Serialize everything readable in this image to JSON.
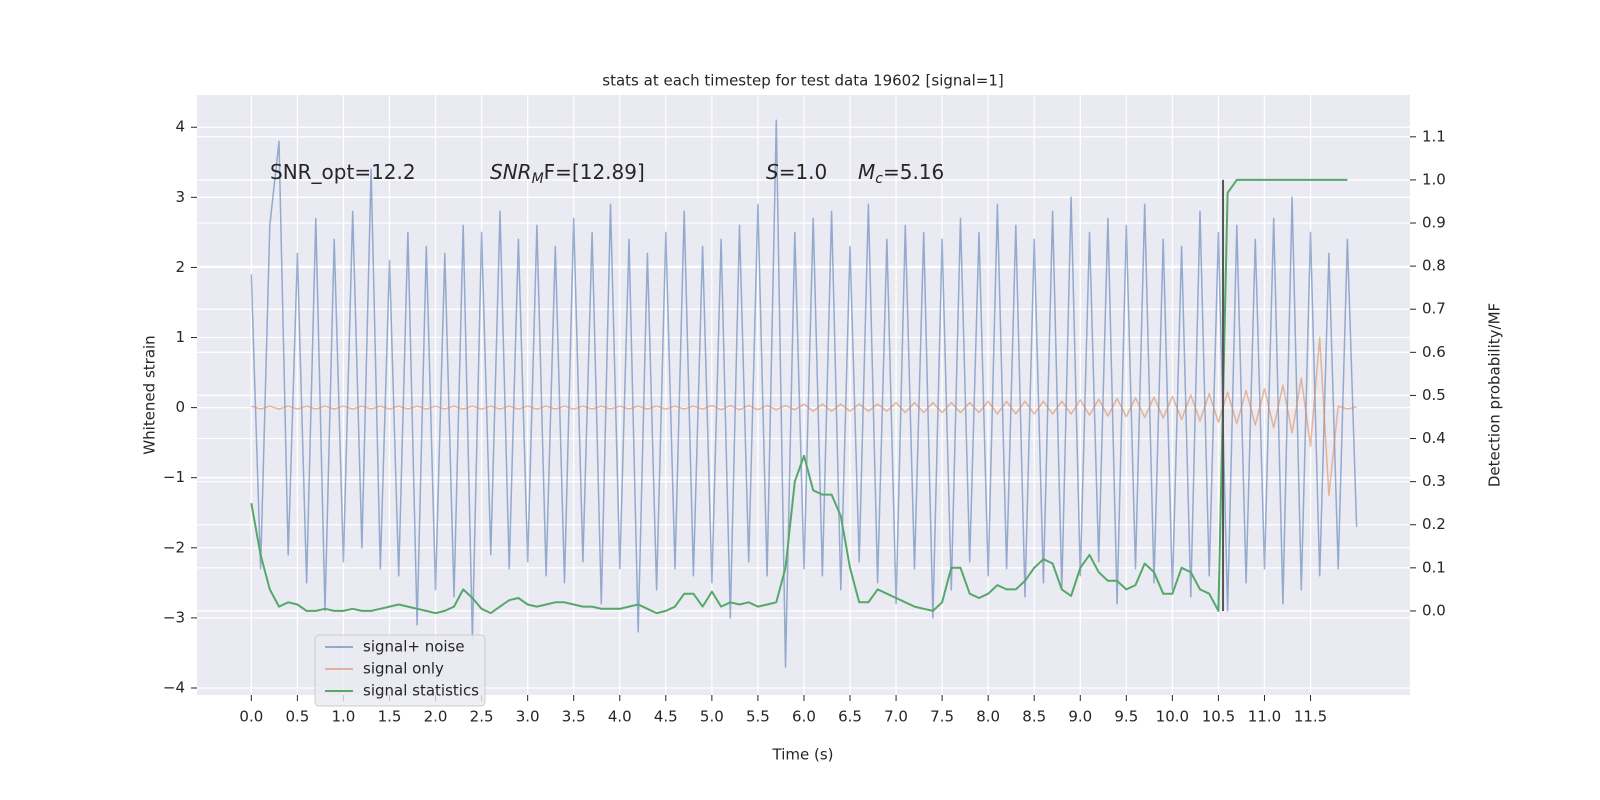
{
  "chart_data": {
    "type": "line",
    "title": "stats at each timestep for test data 19602 [signal=1]",
    "xlabel": "Time (s)",
    "ylabel": "Whitened strain",
    "y2label": "Detection probability/MF",
    "annotations": [
      {
        "text": "SNR_opt=12.2"
      },
      {
        "italic": "SNR",
        "sub": "M",
        "text": "F=[12.89]"
      },
      {
        "italic": "S",
        "text": "=1.0"
      },
      {
        "italic": "M",
        "sub": "c",
        "text": "=5.16"
      }
    ],
    "x": [
      0,
      0.1,
      0.2,
      0.3,
      0.4,
      0.5,
      0.6,
      0.7,
      0.8,
      0.9,
      1,
      1.1,
      1.2,
      1.3,
      1.4,
      1.5,
      1.6,
      1.7,
      1.8,
      1.9,
      2,
      2.1,
      2.2,
      2.3,
      2.4,
      2.5,
      2.6,
      2.7,
      2.8,
      2.9,
      3,
      3.1,
      3.2,
      3.3,
      3.4,
      3.5,
      3.6,
      3.7,
      3.8,
      3.9,
      4,
      4.1,
      4.2,
      4.3,
      4.4,
      4.5,
      4.6,
      4.7,
      4.8,
      4.9,
      5,
      5.1,
      5.2,
      5.3,
      5.4,
      5.5,
      5.6,
      5.7,
      5.8,
      5.9,
      6,
      6.1,
      6.2,
      6.3,
      6.4,
      6.5,
      6.6,
      6.7,
      6.8,
      6.9,
      7,
      7.1,
      7.2,
      7.3,
      7.4,
      7.5,
      7.6,
      7.7,
      7.8,
      7.9,
      8,
      8.1,
      8.2,
      8.3,
      8.4,
      8.5,
      8.6,
      8.7,
      8.8,
      8.9,
      9,
      9.1,
      9.2,
      9.3,
      9.4,
      9.5,
      9.6,
      9.7,
      9.8,
      9.9,
      10,
      10.1,
      10.2,
      10.3,
      10.4,
      10.5,
      10.6,
      10.7,
      10.8,
      10.9,
      11,
      11.1,
      11.2,
      11.3,
      11.4,
      11.5,
      11.6,
      11.7,
      11.8,
      11.9,
      12
    ],
    "series": [
      {
        "name": "signal+ noise",
        "color": "#4c72b0",
        "values": [
          1.9,
          -2.3,
          2.6,
          3.8,
          -2.1,
          2.2,
          -2.5,
          2.7,
          -2.9,
          2.4,
          -2.2,
          2.8,
          -2.0,
          3.4,
          -2.3,
          2.1,
          -2.4,
          2.5,
          -3.1,
          2.3,
          -2.6,
          2.2,
          -2.7,
          2.6,
          -3.3,
          2.5,
          -2.1,
          2.8,
          -2.3,
          2.4,
          -2.2,
          2.6,
          -2.4,
          2.3,
          -2.5,
          2.7,
          -2.2,
          2.5,
          -2.8,
          2.9,
          -2.3,
          2.4,
          -3.2,
          2.2,
          -2.6,
          2.5,
          -2.3,
          2.8,
          -2.4,
          2.3,
          -2.5,
          2.4,
          -3.0,
          2.6,
          -2.2,
          2.9,
          -2.4,
          4.1,
          -3.7,
          2.5,
          -2.3,
          2.7,
          -2.4,
          2.8,
          -2.6,
          2.3,
          -2.2,
          2.9,
          -2.5,
          2.4,
          -2.8,
          2.6,
          -2.3,
          2.5,
          -3.0,
          2.4,
          -2.6,
          2.7,
          -2.2,
          2.5,
          -2.4,
          2.9,
          -2.3,
          2.6,
          -2.7,
          2.4,
          -2.5,
          2.8,
          -2.6,
          3.0,
          -2.4,
          2.5,
          -2.2,
          2.7,
          -2.8,
          2.6,
          -2.3,
          2.9,
          -2.5,
          2.4,
          -2.6,
          2.3,
          -2.7,
          2.8,
          -2.4,
          2.5,
          -2.9,
          2.6,
          -2.5,
          2.4,
          -2.3,
          2.7,
          -2.8,
          3.0,
          -2.6,
          2.5,
          -2.4,
          2.2,
          -2.3,
          2.4,
          -1.7
        ]
      },
      {
        "name": "signal only",
        "color": "#dd8452",
        "values": [
          0.02,
          -0.02,
          0.02,
          -0.02,
          0.02,
          -0.02,
          0.02,
          -0.02,
          0.02,
          -0.02,
          0.02,
          -0.02,
          0.02,
          -0.02,
          0.02,
          -0.02,
          0.02,
          -0.02,
          0.02,
          -0.02,
          0.02,
          -0.02,
          0.02,
          -0.02,
          0.02,
          -0.02,
          0.02,
          -0.02,
          0.02,
          -0.02,
          0.02,
          -0.02,
          0.02,
          -0.02,
          0.02,
          -0.02,
          0.02,
          -0.02,
          0.02,
          -0.02,
          0.02,
          -0.02,
          0.02,
          -0.02,
          0.02,
          -0.02,
          0.02,
          -0.02,
          0.02,
          -0.02,
          0.03,
          -0.03,
          0.03,
          -0.03,
          0.03,
          -0.03,
          0.03,
          -0.03,
          0.03,
          -0.03,
          0.05,
          -0.05,
          0.05,
          -0.05,
          0.05,
          -0.05,
          0.05,
          -0.05,
          0.05,
          -0.05,
          0.07,
          -0.07,
          0.07,
          -0.07,
          0.07,
          -0.07,
          0.07,
          -0.07,
          0.07,
          -0.07,
          0.09,
          -0.09,
          0.09,
          -0.09,
          0.09,
          -0.09,
          0.09,
          -0.09,
          0.09,
          -0.09,
          0.11,
          -0.11,
          0.12,
          -0.12,
          0.13,
          -0.13,
          0.14,
          -0.14,
          0.15,
          -0.15,
          0.16,
          -0.17,
          0.18,
          -0.19,
          0.2,
          -0.21,
          0.22,
          -0.23,
          0.24,
          -0.25,
          0.27,
          -0.29,
          0.32,
          -0.36,
          0.42,
          -0.55,
          1.0,
          -1.25,
          0.02,
          -0.02,
          0.01
        ]
      },
      {
        "name": "signal statistics",
        "color": "#55a868",
        "axis": "y2",
        "values": [
          0.25,
          0.13,
          0.05,
          0.01,
          0.02,
          0.015,
          0.0,
          0.0,
          0.005,
          0.0,
          0.0,
          0.005,
          0.0,
          0.0,
          0.005,
          0.01,
          0.015,
          0.01,
          0.005,
          0.0,
          -0.005,
          0.0,
          0.01,
          0.05,
          0.03,
          0.005,
          -0.005,
          0.01,
          0.025,
          0.03,
          0.015,
          0.01,
          0.015,
          0.02,
          0.02,
          0.015,
          0.01,
          0.01,
          0.005,
          0.005,
          0.005,
          0.01,
          0.015,
          0.005,
          -0.005,
          0.0,
          0.01,
          0.04,
          0.04,
          0.01,
          0.045,
          0.01,
          0.02,
          0.015,
          0.02,
          0.01,
          0.015,
          0.02,
          0.1,
          0.3,
          0.36,
          0.28,
          0.27,
          0.27,
          0.22,
          0.1,
          0.02,
          0.02,
          0.05,
          0.04,
          0.03,
          0.02,
          0.01,
          0.005,
          0.0,
          0.02,
          0.1,
          0.1,
          0.04,
          0.03,
          0.04,
          0.06,
          0.05,
          0.05,
          0.07,
          0.1,
          0.12,
          0.11,
          0.05,
          0.035,
          0.1,
          0.13,
          0.09,
          0.07,
          0.07,
          0.05,
          0.06,
          0.11,
          0.09,
          0.04,
          0.04,
          0.1,
          0.09,
          0.05,
          0.04,
          0.0,
          0.97,
          1.0,
          1.0,
          1.0,
          1.0,
          1.0,
          1.0,
          1.0,
          1.0,
          1.0,
          1.0,
          1.0,
          1.0,
          1.0,
          null
        ]
      }
    ],
    "vertical_line": {
      "x": 10.55,
      "ymin": 0,
      "ymax": 1.0,
      "color": "#555555"
    },
    "xlim": [
      -0.59,
      12.58
    ],
    "ylim": [
      -4.1,
      4.46
    ],
    "y2lim": [
      -0.195,
      1.197
    ],
    "xticks": [
      {
        "value": 0,
        "label": "0.0"
      },
      0.5,
      {
        "value": 1,
        "label": "1.0"
      },
      1.5,
      {
        "value": 2,
        "label": "2.0"
      },
      2.5,
      {
        "value": 3,
        "label": "3.0"
      },
      3.5,
      {
        "value": 4,
        "label": "4.0"
      },
      4.5,
      {
        "value": 5,
        "label": "5.0"
      },
      5.5,
      {
        "value": 6,
        "label": "6.0"
      },
      6.5,
      {
        "value": 7,
        "label": "7.0"
      },
      7.5,
      {
        "value": 8,
        "label": "8.0"
      },
      8.5,
      {
        "value": 9,
        "label": "9.0"
      },
      9.5,
      {
        "value": 10,
        "label": "10.0"
      },
      10.5,
      {
        "value": 11,
        "label": "11.0"
      },
      11.5
    ],
    "yticks": [
      {
        "value": -4,
        "label": "−4"
      },
      {
        "value": -3,
        "label": "−3"
      },
      {
        "value": -2,
        "label": "−2"
      },
      {
        "value": -1,
        "label": "−1"
      },
      0,
      1,
      2,
      3,
      4
    ],
    "y2ticks": [
      {
        "value": 0,
        "label": "0.0"
      },
      0.1,
      0.2,
      0.3,
      0.4,
      0.5,
      0.6,
      0.7,
      0.8,
      0.9,
      {
        "value": 1,
        "label": "1.0"
      },
      1.1
    ],
    "grid": true,
    "legend": "lower left"
  }
}
